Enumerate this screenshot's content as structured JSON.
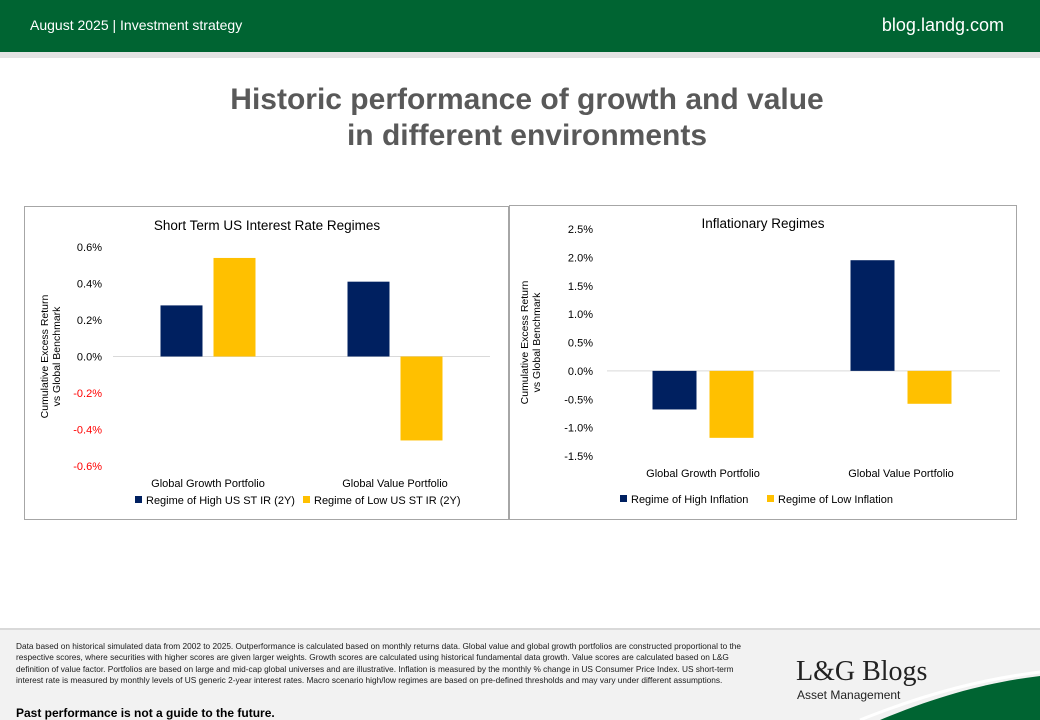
{
  "header": {
    "left_text": "August 2025 | Investment strategy",
    "right_text": "blog.landg.com"
  },
  "page_title_line1": "Historic performance of growth and value",
  "page_title_line2": "in different environments",
  "chart_data": [
    {
      "type": "bar",
      "title": "Short Term US Interest Rate Regimes",
      "ylabel_line1": "Cumulative Excess Return",
      "ylabel_line2": "vs Global Benchmark",
      "categories": [
        "Global Growth Portfolio",
        "Global Value Portfolio"
      ],
      "series": [
        {
          "name": "Regime of High US ST IR (2Y)",
          "color": "#002060",
          "values": [
            0.28,
            0.41
          ]
        },
        {
          "name": "Regime of Low US ST IR (2Y)",
          "color": "#ffc000",
          "values": [
            0.54,
            -0.46
          ]
        }
      ],
      "yticks": [
        "0.6%",
        "0.4%",
        "0.2%",
        "0.0%",
        "-0.2%",
        "-0.4%",
        "-0.6%"
      ],
      "ytick_values": [
        0.6,
        0.4,
        0.2,
        0.0,
        -0.2,
        -0.4,
        -0.6
      ],
      "ylim": [
        -0.6,
        0.6
      ],
      "negative_tick_color": "#ff0000",
      "grid": false,
      "legend_position": "bottom"
    },
    {
      "type": "bar",
      "title": "Inflationary Regimes",
      "ylabel_line1": "Cumulative Excess Return",
      "ylabel_line2": "vs Global Benchmark",
      "categories": [
        "Global Growth Portfolio",
        "Global Value Portfolio"
      ],
      "series": [
        {
          "name": "Regime of High Inflation",
          "color": "#002060",
          "values": [
            -0.68,
            1.95
          ]
        },
        {
          "name": "Regime of Low Inflation",
          "color": "#ffc000",
          "values": [
            -1.18,
            -0.58
          ]
        }
      ],
      "yticks": [
        "2.5%",
        "2.0%",
        "1.5%",
        "1.0%",
        "0.5%",
        "0.0%",
        "-0.5%",
        "-1.0%",
        "-1.5%"
      ],
      "ytick_values": [
        2.5,
        2.0,
        1.5,
        1.0,
        0.5,
        0.0,
        -0.5,
        -1.0,
        -1.5
      ],
      "ylim": [
        -1.5,
        2.5
      ],
      "grid": false,
      "legend_position": "bottom"
    }
  ],
  "footnote": "Data based on historical simulated data from 2002 to 2025. Outperformance is calculated based on monthly returns data. Global value and global growth portfolios are constructed proportional to the respective scores, where securities with higher scores are given larger weights. Growth scores are calculated using historical fundamental data growth. Value scores are calculated based on L&G definition of value factor. Portfolios are based on large and mid-cap global universes and are illustrative. Inflation is measured by the monthly % change in US Consumer Price Index. US short-term interest rate is measured by monthly levels of US generic 2-year interest rates. Macro scenario high/low regimes are based on pre-defined thresholds and may vary under different assumptions.",
  "disclaimer": "Past performance is not a guide to the future.",
  "logo": {
    "name": "L&G Blogs",
    "subtitle": "Asset Management"
  },
  "colors": {
    "brand_green": "#006432",
    "navy": "#002060",
    "gold": "#ffc000"
  }
}
